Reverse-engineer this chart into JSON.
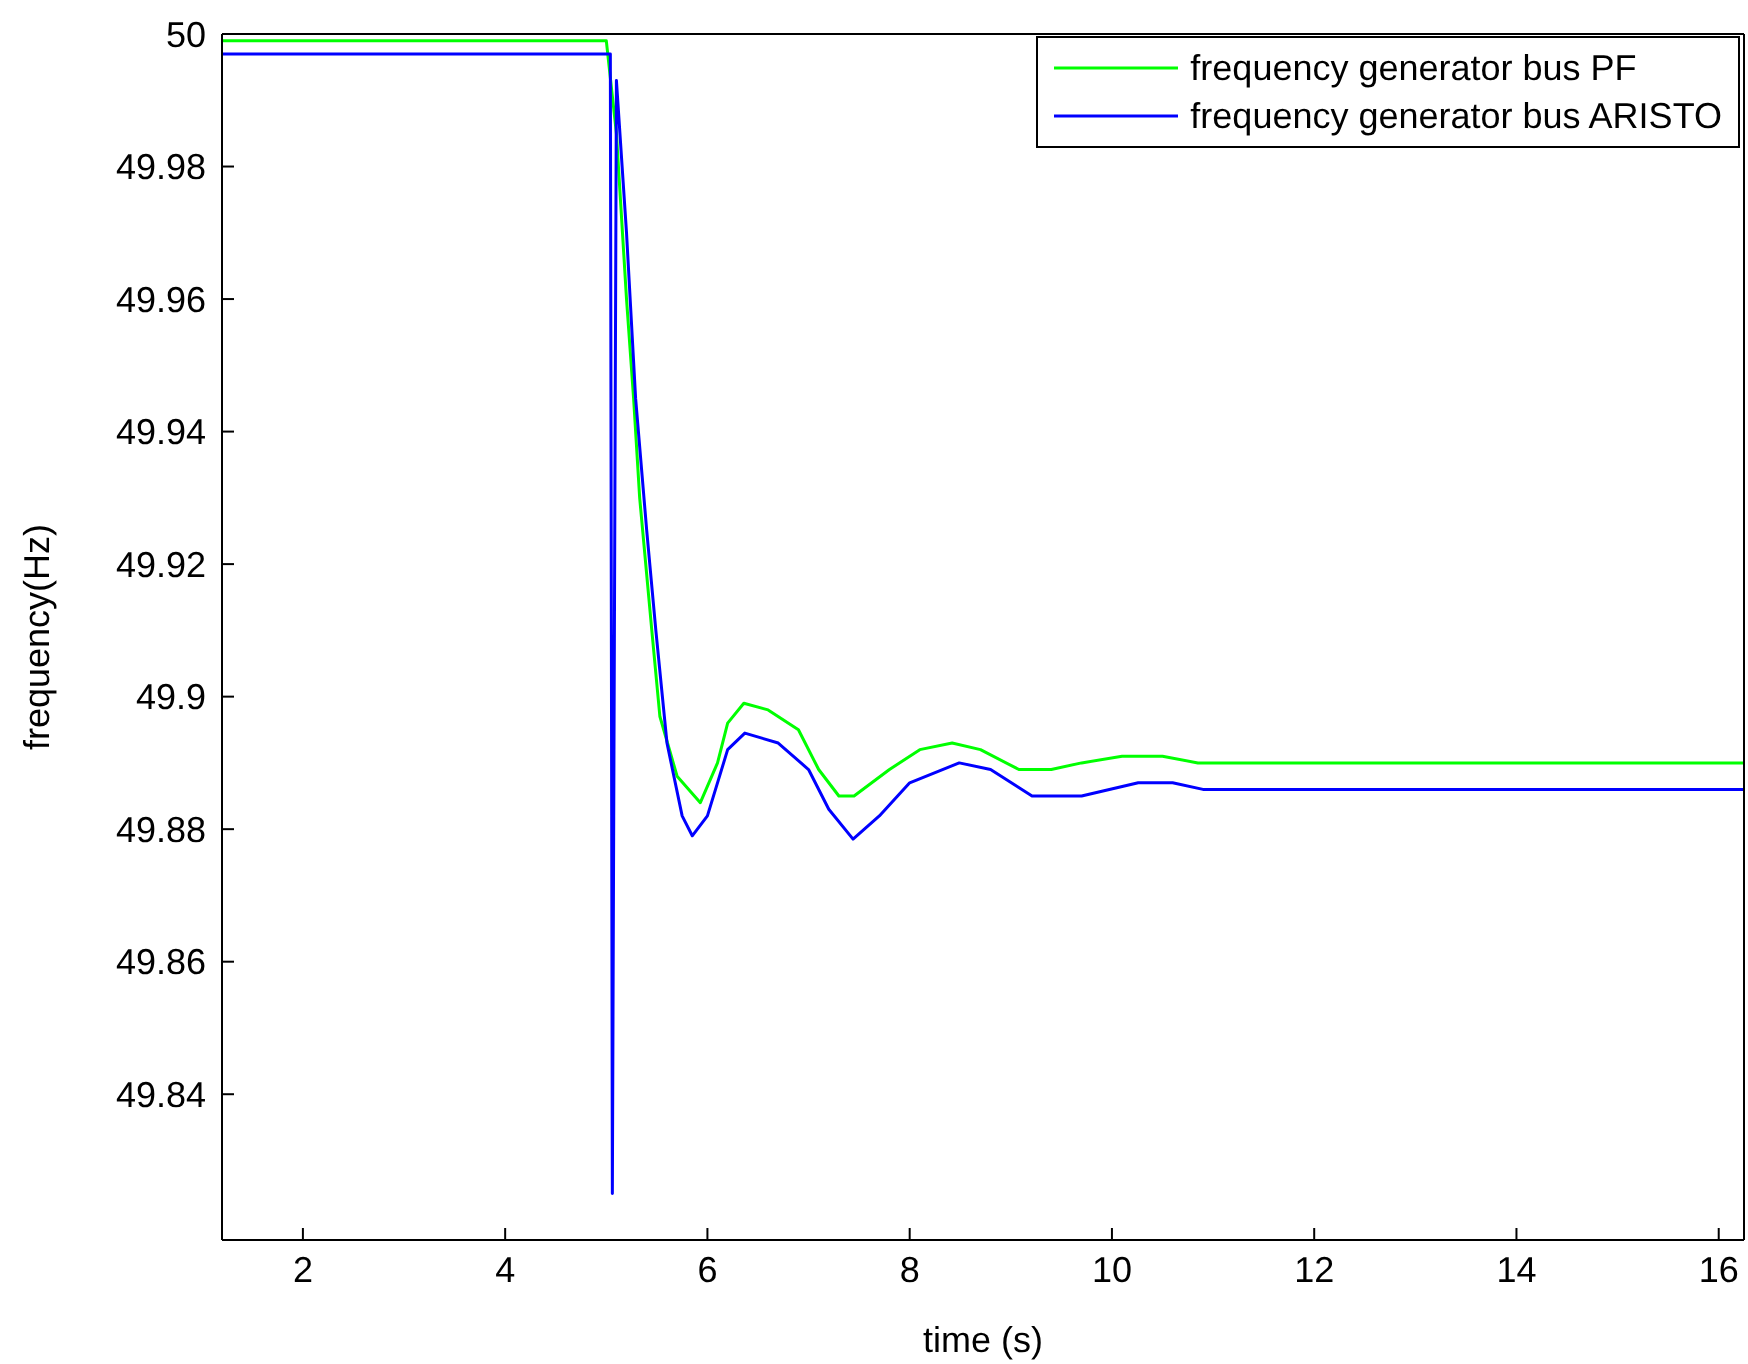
{
  "chart_data": {
    "type": "line",
    "xlabel": "time (s)",
    "ylabel": "frequency(Hz)",
    "xlim": [
      1.2,
      16.25
    ],
    "xticks": [
      2,
      4,
      6,
      8,
      10,
      12,
      14,
      16
    ],
    "ylim": [
      49.818,
      50
    ],
    "yticks": [
      49.84,
      49.86,
      49.88,
      49.9,
      49.92,
      49.94,
      49.96,
      49.98,
      50
    ],
    "grid": false,
    "legend": "top right",
    "marker": "none",
    "line_style": "solid",
    "series": [
      {
        "name": "frequency generator bus PF",
        "color": "#00ff00",
        "x": [
          1.2,
          5.0,
          5.1,
          5.2,
          5.27,
          5.33,
          5.45,
          5.53,
          5.7,
          5.93,
          6.1,
          6.2,
          6.36,
          6.6,
          6.9,
          7.1,
          7.3,
          7.45,
          7.8,
          8.1,
          8.42,
          8.7,
          9.08,
          9.4,
          9.7,
          10.1,
          10.5,
          10.85,
          16.25
        ],
        "values": [
          49.999,
          49.999,
          49.985,
          49.96,
          49.945,
          49.93,
          49.91,
          49.897,
          49.888,
          49.884,
          49.89,
          49.896,
          49.899,
          49.898,
          49.895,
          49.889,
          49.885,
          49.885,
          49.889,
          49.892,
          49.893,
          49.892,
          49.889,
          49.889,
          49.89,
          49.891,
          49.891,
          49.89,
          49.89
        ]
      },
      {
        "name": "frequency generator bus ARISTO",
        "color": "#0000ff",
        "x": [
          1.2,
          5.04,
          5.06,
          5.1,
          5.2,
          5.29,
          5.4,
          5.49,
          5.6,
          5.75,
          5.85,
          6.0,
          6.2,
          6.37,
          6.7,
          7.0,
          7.2,
          7.44,
          7.7,
          8.0,
          8.49,
          8.8,
          9.21,
          9.7,
          10.26,
          10.6,
          10.9,
          16.25
        ],
        "values": [
          49.997,
          49.997,
          49.825,
          49.993,
          49.97,
          49.945,
          49.925,
          49.91,
          49.893,
          49.882,
          49.879,
          49.882,
          49.892,
          49.8945,
          49.893,
          49.889,
          49.883,
          49.8785,
          49.882,
          49.887,
          49.89,
          49.889,
          49.885,
          49.885,
          49.887,
          49.887,
          49.886,
          49.886
        ]
      }
    ]
  }
}
